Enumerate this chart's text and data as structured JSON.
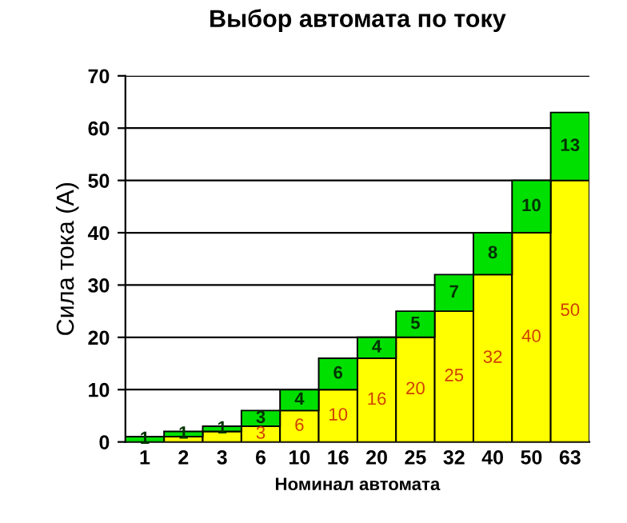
{
  "chart_data": {
    "type": "bar",
    "title": "Выбор автомата по току",
    "xlabel": "Номинал автомата",
    "ylabel": "Сила тока (А)",
    "categories": [
      "1",
      "2",
      "3",
      "6",
      "10",
      "16",
      "20",
      "25",
      "32",
      "40",
      "50",
      "63"
    ],
    "stacked": true,
    "series": [
      {
        "color": "#ffff00",
        "values": [
          0,
          1,
          2,
          3,
          6,
          10,
          16,
          20,
          25,
          32,
          40,
          50
        ],
        "value_labels": [
          null,
          null,
          null,
          "3",
          "6",
          "10",
          "16",
          "20",
          "25",
          "32",
          "40",
          "50"
        ]
      },
      {
        "color": "#00e000",
        "values": [
          1,
          1,
          1,
          3,
          4,
          6,
          4,
          5,
          7,
          8,
          10,
          13
        ],
        "value_labels": [
          "1",
          "1",
          "1",
          "3",
          "4",
          "6",
          "4",
          "5",
          "7",
          "8",
          "10",
          "13"
        ]
      }
    ],
    "ylim": [
      0,
      70
    ],
    "yticks": [
      0,
      10,
      20,
      30,
      40,
      50,
      60,
      70
    ],
    "grid": "y",
    "legend": false
  }
}
